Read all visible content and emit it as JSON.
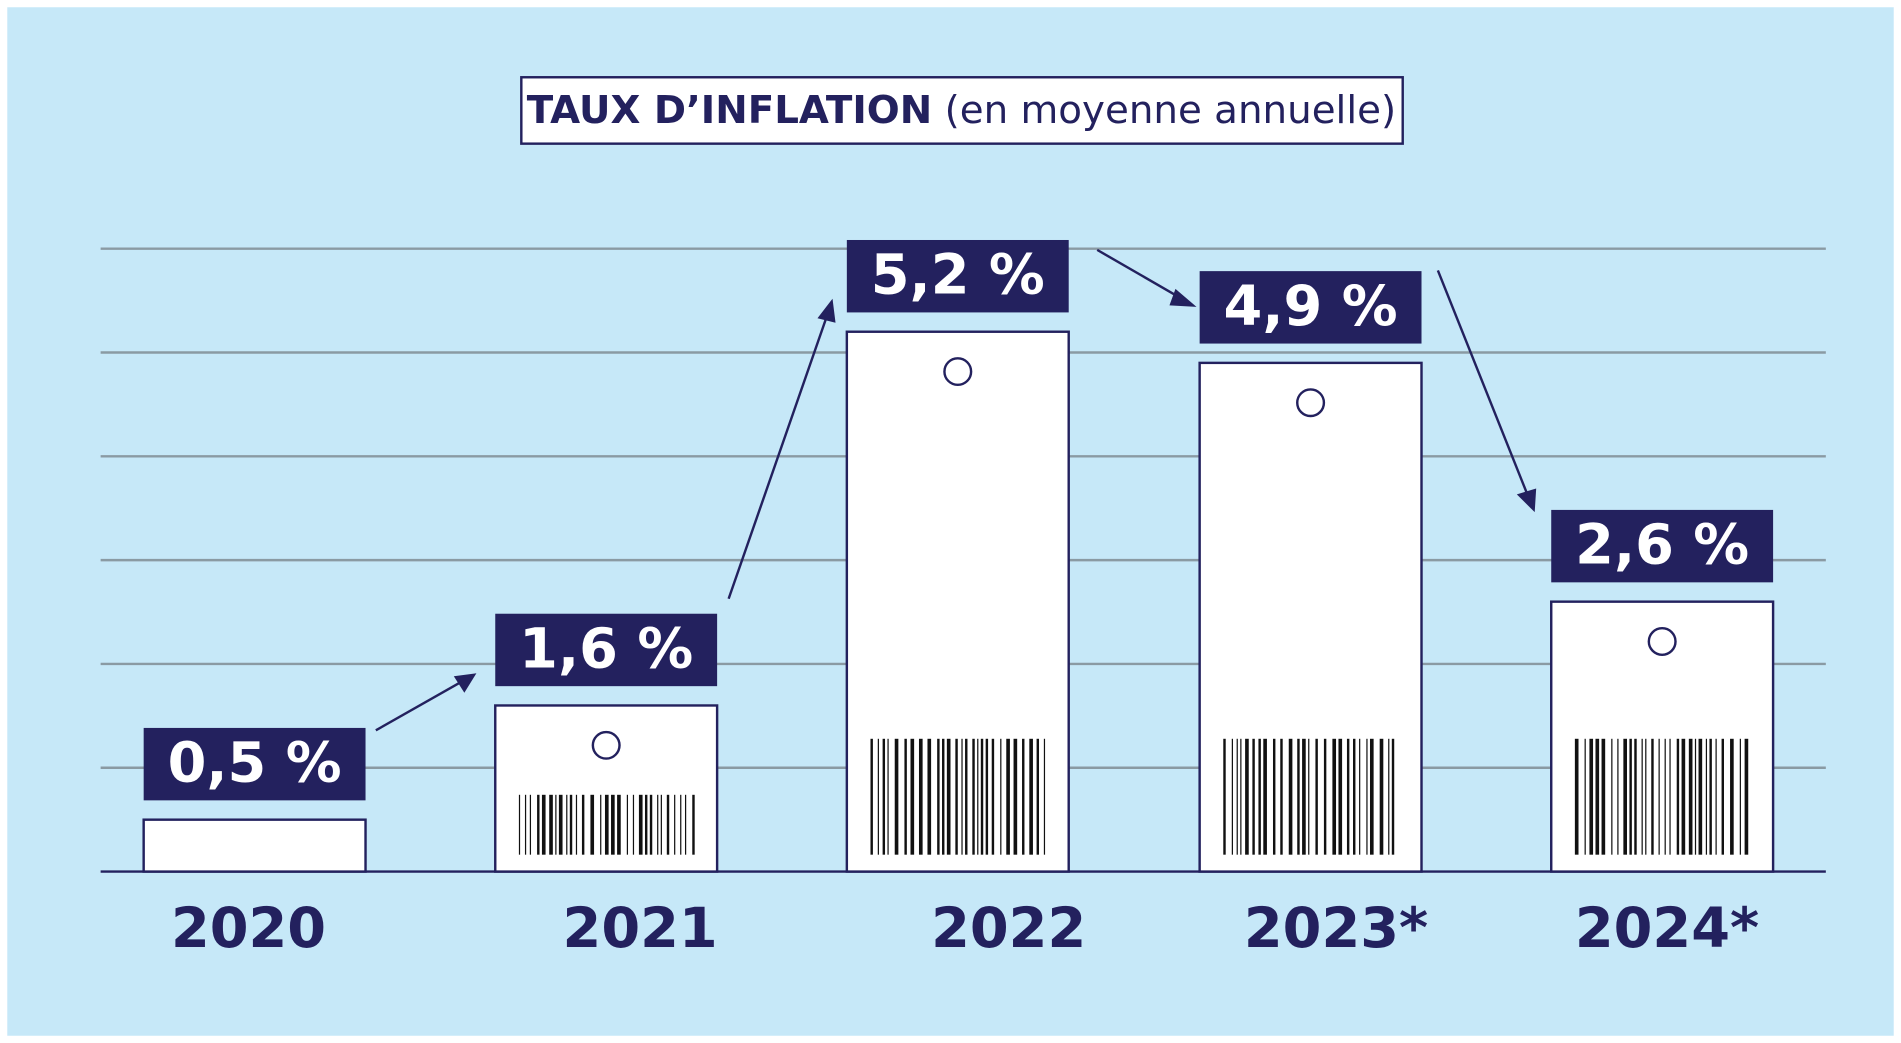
{
  "chart_data": {
    "type": "bar",
    "title": "TAUX D’INFLATION",
    "subtitle": "(en moyenne annuelle)",
    "categories": [
      "2020",
      "2021",
      "2022",
      "2023*",
      "2024*"
    ],
    "values": [
      0.5,
      1.6,
      5.2,
      4.9,
      2.6
    ],
    "value_labels": [
      "0,5 %",
      "1,6 %",
      "5,2 %",
      "4,9 %",
      "2,6 %"
    ],
    "color": "#ffffff",
    "label_color": "#23215e",
    "ylim": [
      0,
      6
    ],
    "yticks": [
      0,
      1,
      2,
      3,
      4,
      5,
      6
    ],
    "grid": true
  }
}
